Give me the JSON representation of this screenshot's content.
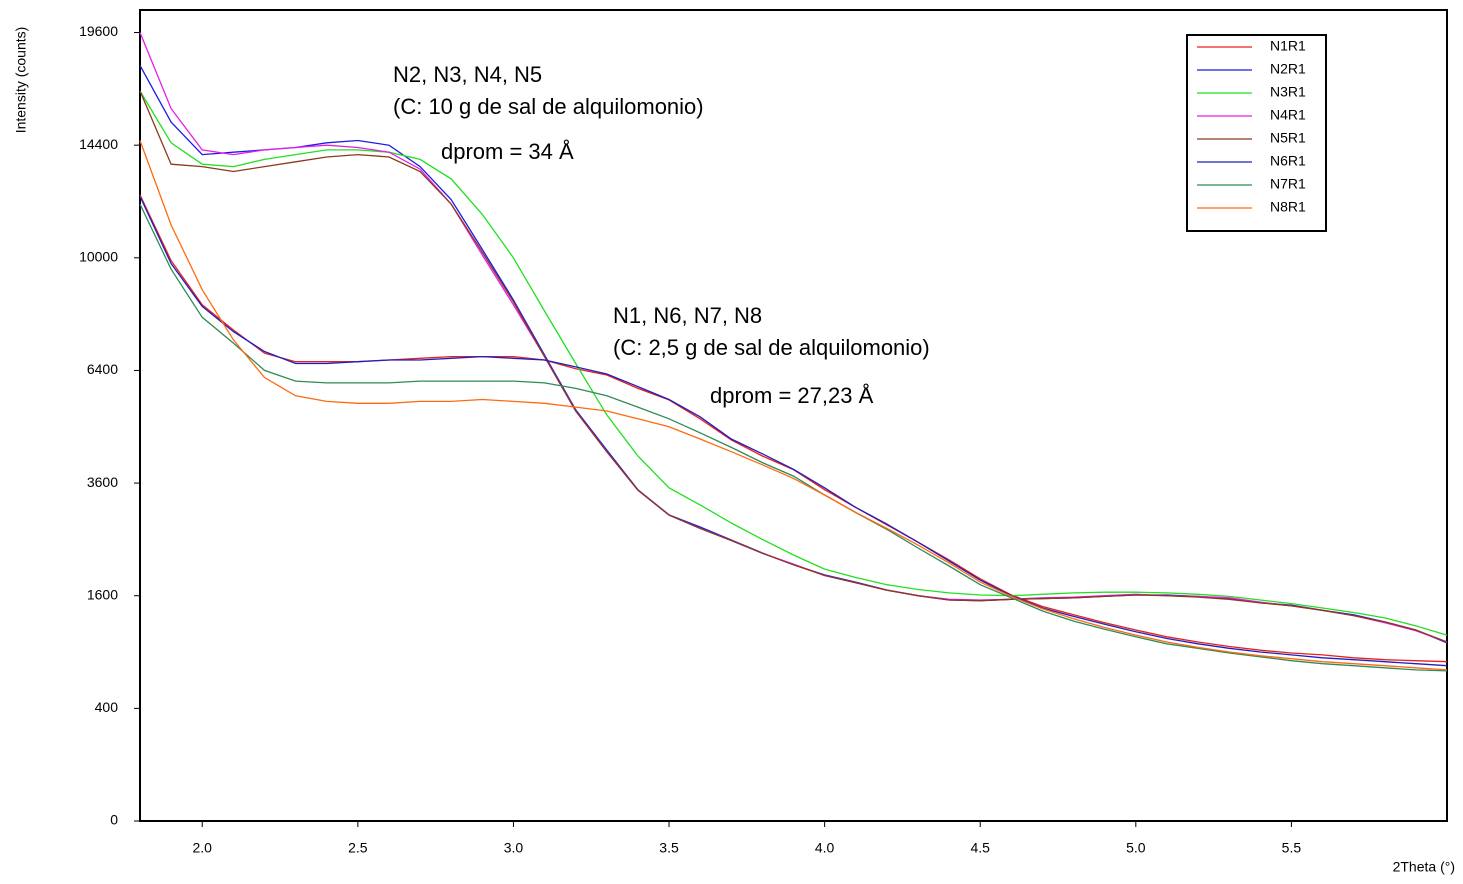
{
  "chart_data": {
    "type": "line",
    "y_label": "Intensity (counts)",
    "x_label": "2Theta (°)",
    "yscale": "sqrt",
    "annotations": [
      "N2, N3, N4, N5",
      "(C: 10 g de sal de alquilomonio)",
      "dprom = 34 Å",
      "N1, N6, N7, N8",
      "(C: 2,5 g de sal de alquilomonio)",
      "dprom = 27,23 Å"
    ],
    "xlim": [
      1.8,
      6.0
    ],
    "ylim": [
      0,
      20736
    ],
    "xticks": [
      {
        "value": 2,
        "label": "2.0"
      },
      2.5,
      {
        "value": 3,
        "label": "3.0"
      },
      3.5,
      {
        "value": 4,
        "label": "4.0"
      },
      4.5,
      {
        "value": 5,
        "label": "5.0"
      },
      5.5
    ],
    "yticks": [
      0,
      400,
      1600,
      3600,
      6400,
      10000,
      14400,
      19600
    ],
    "legend": "top-right",
    "x": [
      1.8,
      1.9,
      2.0,
      2.1,
      2.2,
      2.3,
      2.4,
      2.5,
      2.6,
      2.7,
      2.8,
      2.9,
      3.0,
      3.1,
      3.2,
      3.3,
      3.4,
      3.5,
      3.6,
      3.7,
      3.8,
      3.9,
      4.0,
      4.1,
      4.2,
      4.3,
      4.4,
      4.5,
      4.6,
      4.7,
      4.8,
      4.9,
      5.0,
      5.1,
      5.2,
      5.3,
      5.4,
      5.5,
      5.6,
      5.7,
      5.8,
      5.9,
      6.0
    ],
    "series": [
      {
        "name": "N1R1",
        "color": "#e8201c",
        "values": [
          12360,
          9900,
          8400,
          7600,
          6900,
          6650,
          6650,
          6650,
          6700,
          6750,
          6800,
          6800,
          6800,
          6700,
          6450,
          6270,
          5900,
          5590,
          5100,
          4580,
          4200,
          3890,
          3460,
          3100,
          2765,
          2450,
          2150,
          1850,
          1610,
          1450,
          1340,
          1240,
          1150,
          1070,
          1010,
          960,
          920,
          890,
          870,
          840,
          820,
          810,
          800
        ]
      },
      {
        "name": "N2R1",
        "color": "#1c1ce8",
        "values": [
          18000,
          15400,
          14000,
          14100,
          14200,
          14300,
          14500,
          14600,
          14400,
          13500,
          12170,
          10300,
          8560,
          6850,
          5330,
          4340,
          3460,
          2955,
          2725,
          2490,
          2265,
          2070,
          1910,
          1800,
          1683,
          1600,
          1540,
          1530,
          1550,
          1560,
          1570,
          1590,
          1610,
          1610,
          1590,
          1560,
          1500,
          1470,
          1400,
          1340,
          1250,
          1150,
          1000
        ]
      },
      {
        "name": "N3R1",
        "color": "#22e022",
        "values": [
          16800,
          14500,
          13600,
          13500,
          13800,
          14000,
          14200,
          14200,
          14100,
          13800,
          13000,
          11600,
          10000,
          8200,
          6600,
          5200,
          4200,
          3500,
          3150,
          2800,
          2500,
          2230,
          2000,
          1870,
          1760,
          1690,
          1640,
          1610,
          1600,
          1620,
          1640,
          1650,
          1650,
          1640,
          1620,
          1590,
          1540,
          1490,
          1430,
          1370,
          1300,
          1200,
          1090
        ]
      },
      {
        "name": "N4R1",
        "color": "#e81ce8",
        "values": [
          19600,
          16000,
          14200,
          14000,
          14200,
          14300,
          14400,
          14300,
          14100,
          13400,
          12000,
          10100,
          8400,
          6800,
          5300,
          4300,
          3450,
          2950,
          2700,
          2480,
          2260,
          2080,
          1900,
          1790,
          1680,
          1600,
          1550,
          1540,
          1550,
          1570,
          1580,
          1600,
          1620,
          1600,
          1590,
          1570,
          1510,
          1460,
          1400,
          1330,
          1240,
          1140,
          1010
        ]
      },
      {
        "name": "N5R1",
        "color": "#8b3a1c",
        "values": [
          16800,
          13600,
          13500,
          13300,
          13500,
          13700,
          13900,
          14000,
          13900,
          13300,
          12000,
          10200,
          8500,
          6800,
          5300,
          4300,
          3450,
          2950,
          2700,
          2480,
          2260,
          2070,
          1900,
          1790,
          1680,
          1600,
          1540,
          1530,
          1550,
          1560,
          1570,
          1590,
          1610,
          1600,
          1580,
          1550,
          1500,
          1460,
          1400,
          1330,
          1250,
          1150,
          1010
        ]
      },
      {
        "name": "N6R1",
        "color": "#2020c0",
        "values": [
          12300,
          9800,
          8350,
          7550,
          6950,
          6600,
          6600,
          6650,
          6700,
          6700,
          6750,
          6800,
          6750,
          6700,
          6500,
          6300,
          5950,
          5600,
          5150,
          4600,
          4250,
          3900,
          3500,
          3100,
          2780,
          2450,
          2130,
          1830,
          1600,
          1430,
          1320,
          1220,
          1130,
          1050,
          990,
          940,
          900,
          870,
          840,
          820,
          800,
          780,
          760
        ]
      },
      {
        "name": "N7R1",
        "color": "#2e8b57",
        "values": [
          12000,
          9600,
          8000,
          7200,
          6400,
          6100,
          6050,
          6050,
          6050,
          6100,
          6100,
          6100,
          6100,
          6050,
          5900,
          5700,
          5400,
          5100,
          4750,
          4400,
          4050,
          3750,
          3350,
          3000,
          2680,
          2350,
          2050,
          1760,
          1570,
          1390,
          1260,
          1160,
          1070,
          990,
          940,
          890,
          850,
          810,
          780,
          760,
          740,
          720,
          710
        ]
      },
      {
        "name": "N8R1",
        "color": "#ff6a10",
        "values": [
          14600,
          11200,
          8900,
          7300,
          6200,
          5700,
          5550,
          5500,
          5500,
          5550,
          5550,
          5600,
          5550,
          5500,
          5400,
          5300,
          5100,
          4900,
          4600,
          4300,
          4000,
          3700,
          3350,
          3000,
          2700,
          2400,
          2100,
          1800,
          1590,
          1420,
          1290,
          1180,
          1090,
          1010,
          950,
          900,
          860,
          830,
          800,
          780,
          760,
          740,
          720
        ]
      }
    ]
  }
}
